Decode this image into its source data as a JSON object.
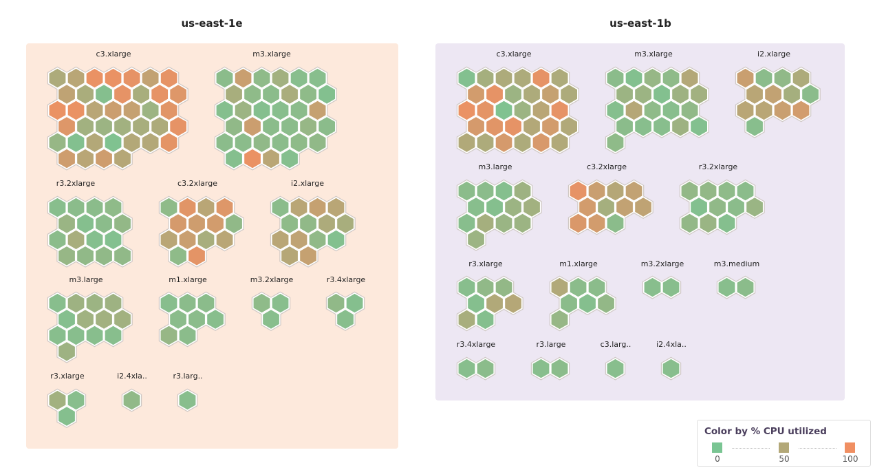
{
  "zones": [
    {
      "name": "us-east-1e",
      "groups": [
        {
          "name": "c3.xlarge",
          "cols": 7,
          "cpu": [
            45,
            55,
            95,
            95,
            92,
            62,
            92,
            60,
            42,
            10,
            92,
            40,
            92,
            85,
            95,
            95,
            55,
            70,
            65,
            30,
            88,
            85,
            35,
            30,
            35,
            40,
            45,
            92,
            25,
            8,
            50,
            5,
            50,
            50,
            90,
            72,
            55,
            72,
            52
          ]
        },
        {
          "name": "m3.xlarge",
          "cols": 6,
          "cpu": [
            15,
            68,
            18,
            35,
            12,
            12,
            40,
            18,
            15,
            42,
            18,
            8,
            10,
            30,
            10,
            12,
            15,
            65,
            20,
            70,
            15,
            15,
            25,
            15,
            15,
            15,
            20,
            15,
            18,
            20,
            10,
            95,
            55,
            10
          ]
        },
        {
          "name": "r3.2xlarge",
          "cols": 4,
          "cpu": [
            12,
            15,
            15,
            18,
            28,
            10,
            15,
            22,
            15,
            40,
            10,
            8,
            25,
            20,
            20,
            20
          ]
        },
        {
          "name": "c3.2xlarge",
          "cols": 4,
          "cpu": [
            18,
            88,
            55,
            85,
            78,
            72,
            75,
            20,
            55,
            68,
            40,
            55,
            18,
            90
          ]
        },
        {
          "name": "i2.xlarge",
          "cols": 4,
          "cpu": [
            15,
            55,
            65,
            55,
            18,
            20,
            45,
            40,
            55,
            60,
            20,
            8,
            52,
            65
          ]
        },
        {
          "name": "m3.large",
          "cols": 4,
          "cpu": [
            12,
            32,
            30,
            32,
            10,
            33,
            35,
            35,
            12,
            12,
            12,
            12,
            32
          ]
        },
        {
          "name": "m1.xlarge",
          "cols": 3,
          "cpu": [
            12,
            15,
            15,
            15,
            15,
            12,
            25,
            15
          ]
        },
        {
          "name": "m3.2xlarge",
          "cols": 2,
          "cpu": [
            18,
            12,
            12
          ]
        },
        {
          "name": "r3.4xlarge",
          "cols": 2,
          "cpu": [
            20,
            10,
            12
          ]
        },
        {
          "name": "r3.xlarge",
          "cols": 2,
          "cpu": [
            35,
            12,
            10
          ]
        },
        {
          "name": "i2.4xla..",
          "cols": 1,
          "cpu": [
            20
          ]
        },
        {
          "name": "r3.larg..",
          "cols": 1,
          "cpu": [
            12
          ]
        }
      ]
    },
    {
      "name": "us-east-1b",
      "groups": [
        {
          "name": "c3.xlarge",
          "cols": 6,
          "cpu": [
            8,
            38,
            45,
            45,
            92,
            45,
            75,
            92,
            30,
            45,
            65,
            45,
            95,
            90,
            5,
            30,
            55,
            92,
            78,
            88,
            92,
            50,
            75,
            48,
            48,
            45,
            78,
            45,
            80,
            48
          ]
        },
        {
          "name": "m3.xlarge",
          "cols": 5,
          "cpu": [
            15,
            8,
            25,
            18,
            50,
            30,
            30,
            8,
            32,
            35,
            10,
            52,
            18,
            12,
            20,
            15,
            12,
            12,
            32,
            8,
            18
          ]
        },
        {
          "name": "i2.xlarge",
          "cols": 4,
          "cpu": [
            68,
            15,
            20,
            45,
            55,
            62,
            38,
            15,
            55,
            55,
            68,
            75,
            12
          ]
        },
        {
          "name": "m3.large",
          "cols": 4,
          "cpu": [
            15,
            15,
            10,
            32,
            12,
            10,
            30,
            35,
            12,
            38,
            28,
            30,
            30
          ]
        },
        {
          "name": "c3.2xlarge",
          "cols": 4,
          "cpu": [
            92,
            68,
            52,
            62,
            75,
            38,
            62,
            60,
            82,
            75,
            15
          ]
        },
        {
          "name": "r3.2xlarge",
          "cols": 4,
          "cpu": [
            22,
            22,
            18,
            15,
            8,
            20,
            15,
            28,
            22,
            28,
            10
          ]
        },
        {
          "name": "r3.xlarge",
          "cols": 3,
          "cpu": [
            12,
            20,
            22,
            10,
            48,
            52,
            40,
            10
          ]
        },
        {
          "name": "m1.xlarge",
          "cols": 3,
          "cpu": [
            48,
            15,
            15,
            15,
            10,
            22,
            25
          ]
        },
        {
          "name": "m3.2xlarge",
          "cols": 2,
          "cpu": [
            12,
            12
          ]
        },
        {
          "name": "m3.medium",
          "cols": 2,
          "cpu": [
            12,
            15
          ]
        },
        {
          "name": "r3.4xlarge",
          "cols": 2,
          "cpu": [
            12,
            15
          ]
        },
        {
          "name": "r3.large",
          "cols": 2,
          "cpu": [
            12,
            15
          ]
        },
        {
          "name": "c3.larg..",
          "cols": 1,
          "cpu": [
            12
          ]
        },
        {
          "name": "i2.4xla..",
          "cols": 1,
          "cpu": [
            12
          ]
        }
      ]
    }
  ],
  "legend": {
    "title": "Color by % CPU utilized",
    "stops": [
      {
        "label": "0",
        "value": 0,
        "color": "#7ac593"
      },
      {
        "label": "50",
        "value": 50,
        "color": "#b3a878"
      },
      {
        "label": "100",
        "value": 100,
        "color": "#f08f62"
      }
    ]
  }
}
